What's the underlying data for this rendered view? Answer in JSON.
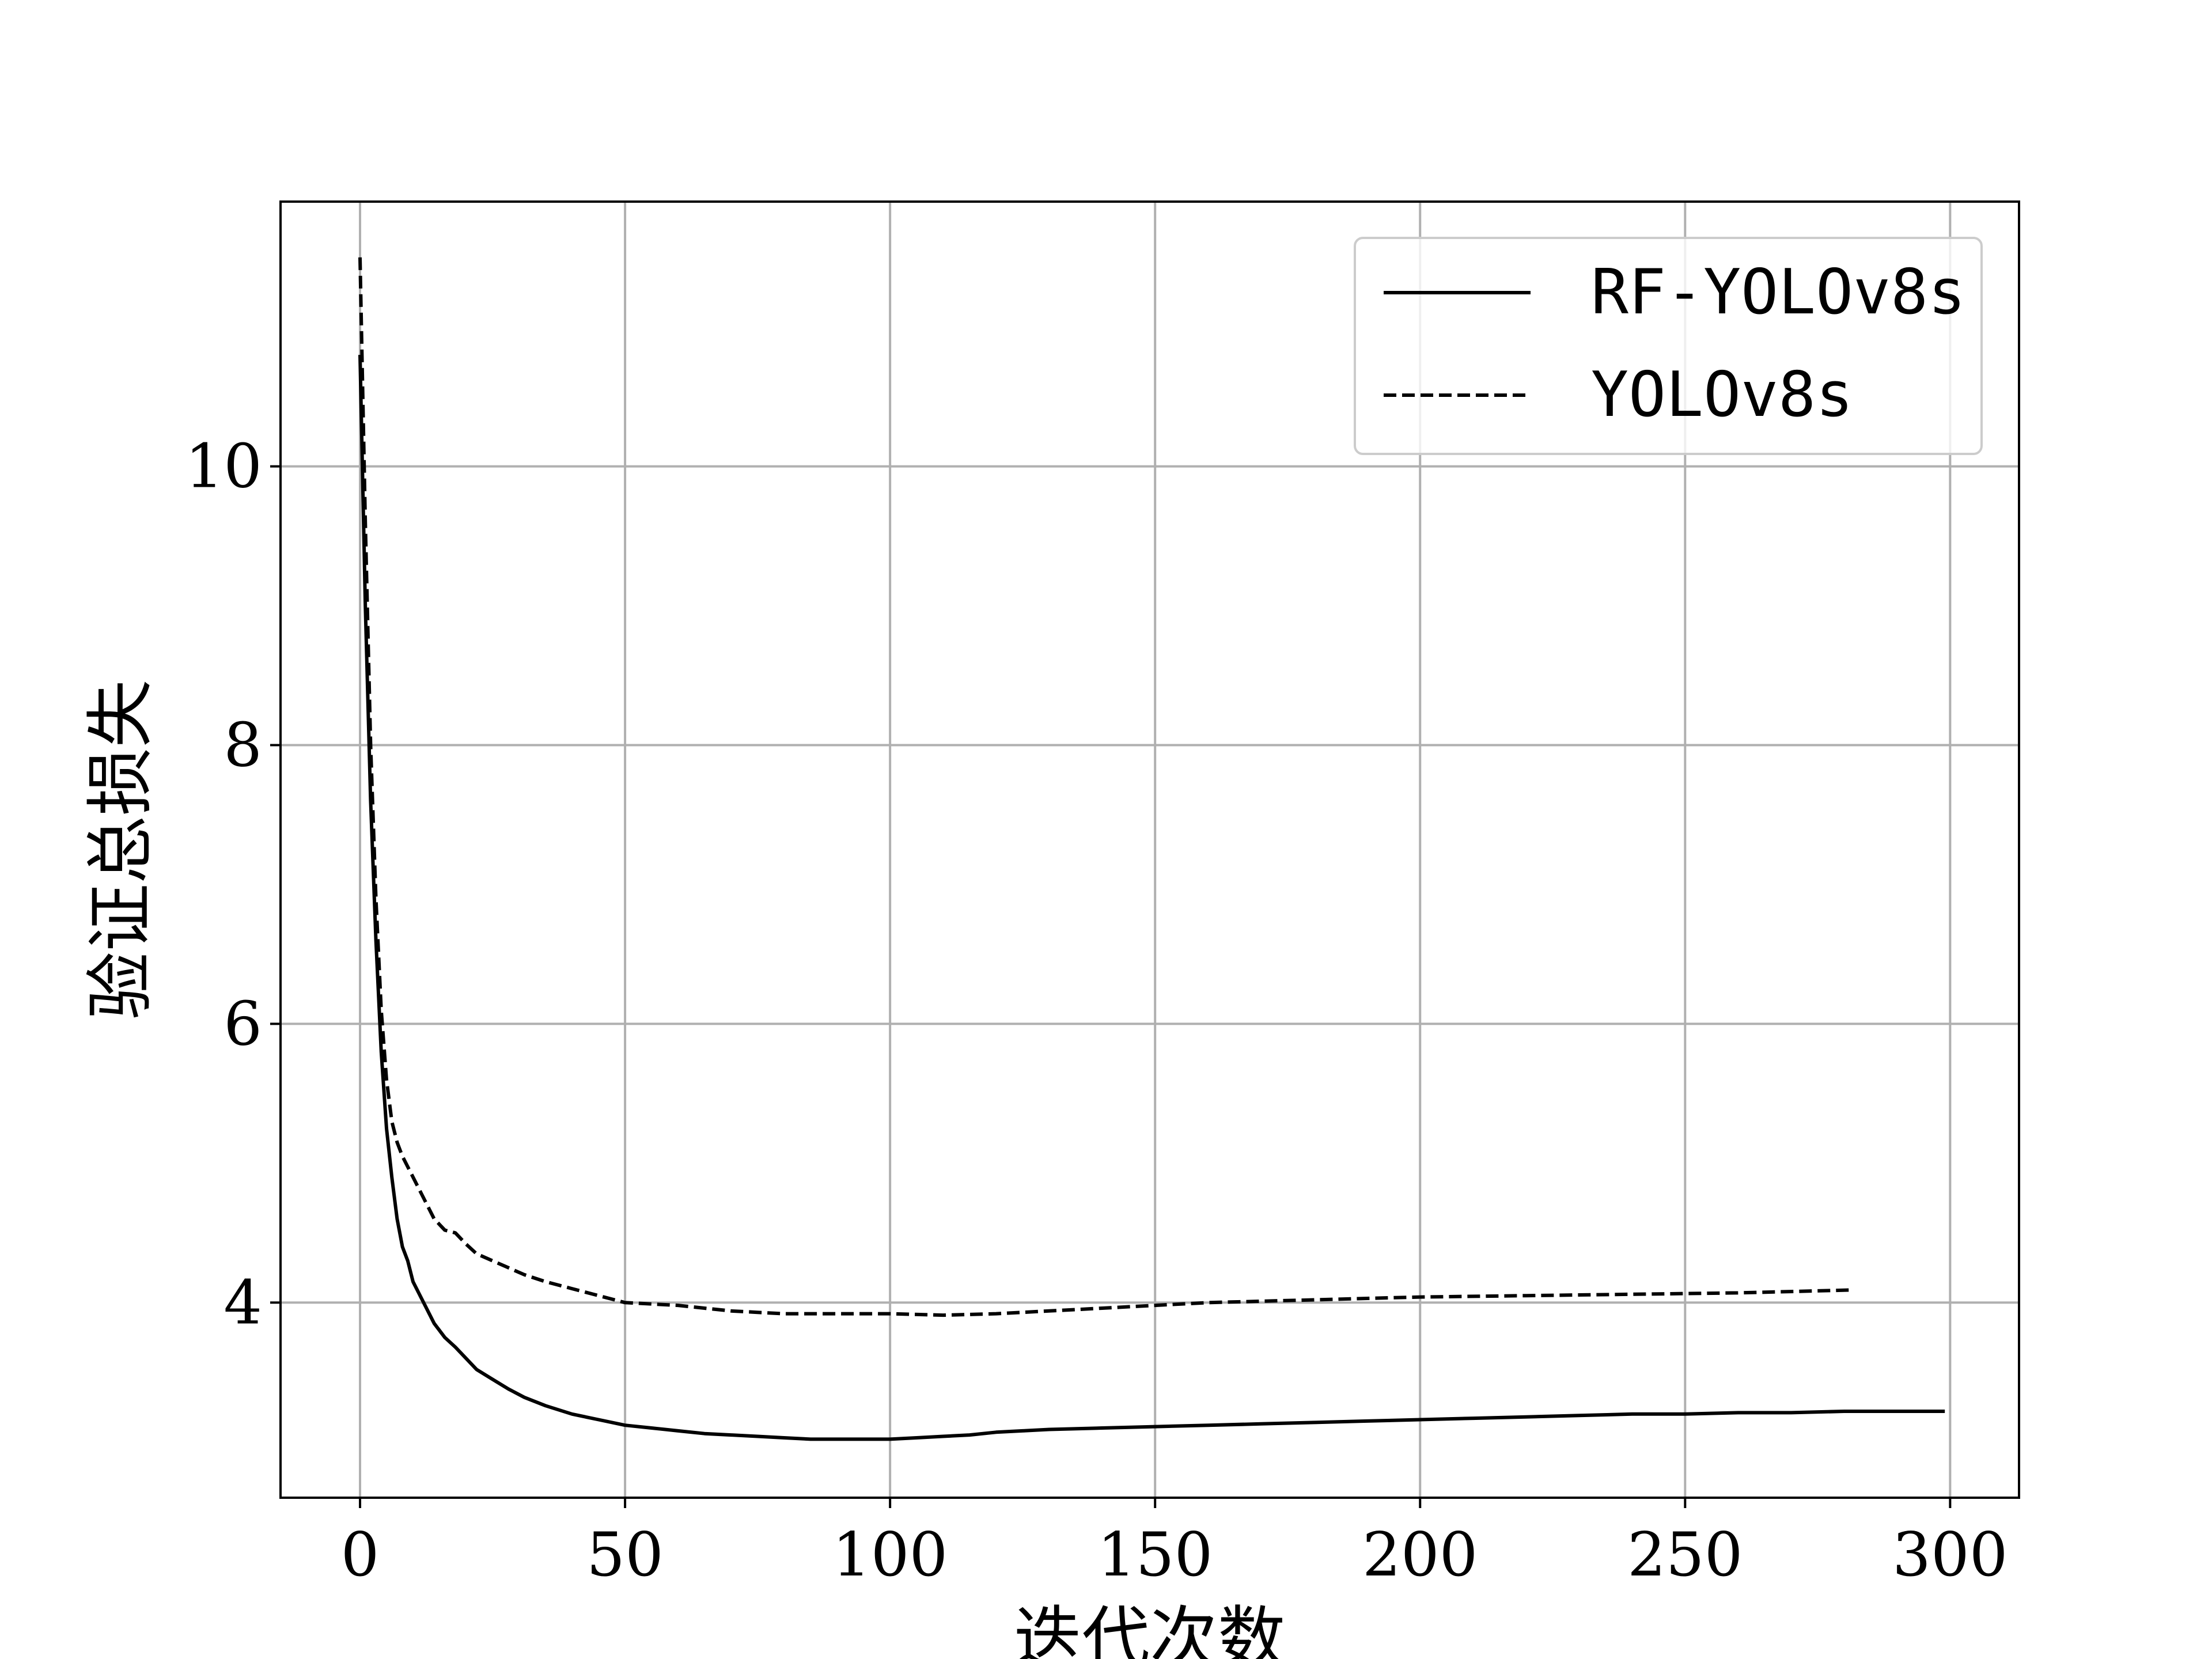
{
  "chart_data": {
    "type": "line",
    "xlabel": "迭代次数",
    "ylabel": "验证总损失",
    "xlim": [
      -15,
      313
    ],
    "ylim": [
      2.6,
      11.9
    ],
    "xticks": [
      0,
      50,
      100,
      150,
      200,
      250,
      300
    ],
    "yticks": [
      4,
      6,
      8,
      10
    ],
    "grid": true,
    "legend_position": "top-right",
    "series": [
      {
        "name": "RF-YOLOv8s",
        "style": "solid",
        "color": "#000000",
        "points": [
          [
            0,
            10.8
          ],
          [
            1,
            9.0
          ],
          [
            2,
            7.6
          ],
          [
            3,
            6.6
          ],
          [
            4,
            5.8
          ],
          [
            5,
            5.25
          ],
          [
            6,
            4.9
          ],
          [
            7,
            4.6
          ],
          [
            8,
            4.4
          ],
          [
            9,
            4.3
          ],
          [
            10,
            4.15
          ],
          [
            12,
            4.0
          ],
          [
            14,
            3.85
          ],
          [
            16,
            3.75
          ],
          [
            18,
            3.68
          ],
          [
            20,
            3.6
          ],
          [
            22,
            3.52
          ],
          [
            25,
            3.45
          ],
          [
            28,
            3.38
          ],
          [
            31,
            3.32
          ],
          [
            35,
            3.26
          ],
          [
            40,
            3.2
          ],
          [
            45,
            3.16
          ],
          [
            50,
            3.12
          ],
          [
            55,
            3.1
          ],
          [
            60,
            3.08
          ],
          [
            65,
            3.06
          ],
          [
            70,
            3.05
          ],
          [
            75,
            3.04
          ],
          [
            80,
            3.03
          ],
          [
            85,
            3.02
          ],
          [
            90,
            3.02
          ],
          [
            95,
            3.02
          ],
          [
            100,
            3.02
          ],
          [
            105,
            3.03
          ],
          [
            110,
            3.04
          ],
          [
            115,
            3.05
          ],
          [
            120,
            3.07
          ],
          [
            125,
            3.08
          ],
          [
            130,
            3.09
          ],
          [
            140,
            3.1
          ],
          [
            150,
            3.11
          ],
          [
            160,
            3.12
          ],
          [
            170,
            3.13
          ],
          [
            180,
            3.14
          ],
          [
            190,
            3.15
          ],
          [
            200,
            3.16
          ],
          [
            210,
            3.17
          ],
          [
            220,
            3.18
          ],
          [
            230,
            3.19
          ],
          [
            240,
            3.2
          ],
          [
            250,
            3.2
          ],
          [
            260,
            3.21
          ],
          [
            270,
            3.21
          ],
          [
            280,
            3.22
          ],
          [
            290,
            3.22
          ],
          [
            299,
            3.22
          ]
        ]
      },
      {
        "name": "YOLOv8s",
        "style": "dashed",
        "color": "#000000",
        "points": [
          [
            0,
            11.5
          ],
          [
            1,
            9.6
          ],
          [
            2,
            8.0
          ],
          [
            3,
            6.9
          ],
          [
            4,
            6.1
          ],
          [
            5,
            5.6
          ],
          [
            6,
            5.3
          ],
          [
            7,
            5.15
          ],
          [
            8,
            5.05
          ],
          [
            10,
            4.9
          ],
          [
            12,
            4.75
          ],
          [
            14,
            4.6
          ],
          [
            16,
            4.52
          ],
          [
            18,
            4.5
          ],
          [
            20,
            4.42
          ],
          [
            22,
            4.35
          ],
          [
            25,
            4.3
          ],
          [
            28,
            4.25
          ],
          [
            31,
            4.2
          ],
          [
            35,
            4.15
          ],
          [
            40,
            4.1
          ],
          [
            45,
            4.05
          ],
          [
            50,
            4.0
          ],
          [
            55,
            3.99
          ],
          [
            60,
            3.98
          ],
          [
            65,
            3.96
          ],
          [
            70,
            3.94
          ],
          [
            75,
            3.93
          ],
          [
            80,
            3.92
          ],
          [
            90,
            3.92
          ],
          [
            100,
            3.92
          ],
          [
            110,
            3.91
          ],
          [
            120,
            3.92
          ],
          [
            130,
            3.94
          ],
          [
            140,
            3.96
          ],
          [
            150,
            3.98
          ],
          [
            160,
            4.0
          ],
          [
            170,
            4.01
          ],
          [
            180,
            4.02
          ],
          [
            190,
            4.03
          ],
          [
            200,
            4.04
          ],
          [
            220,
            4.05
          ],
          [
            240,
            4.06
          ],
          [
            260,
            4.07
          ],
          [
            281,
            4.09
          ]
        ]
      }
    ]
  }
}
